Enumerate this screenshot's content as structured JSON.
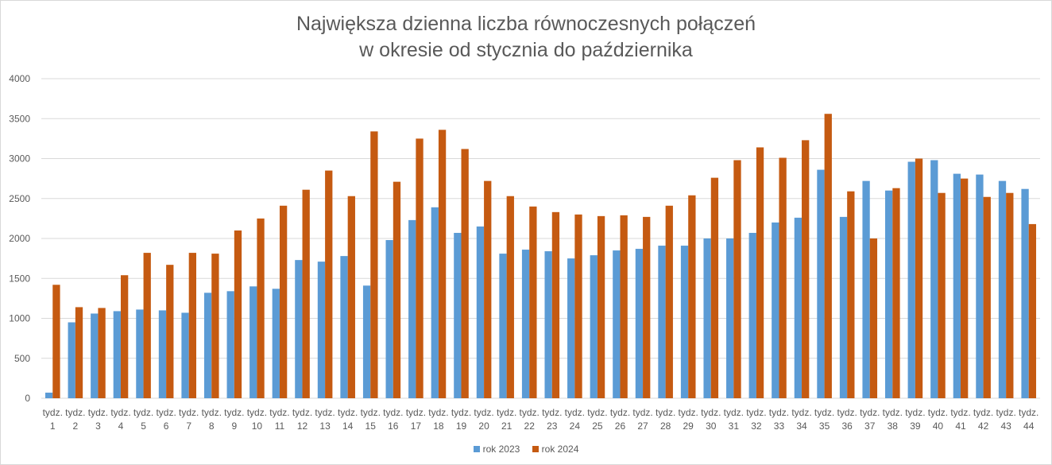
{
  "chart_data": {
    "type": "bar",
    "title_lines": [
      "Największa dzienna liczba równoczesnych połączeń",
      "w okresie od stycznia do października"
    ],
    "xlabel": "",
    "ylabel": "",
    "ylim": [
      0,
      4000
    ],
    "yticks": [
      0,
      500,
      1000,
      1500,
      2000,
      2500,
      3000,
      3500,
      4000
    ],
    "grid": true,
    "legend_position": "bottom",
    "category_prefix": "tydz.",
    "categories": [
      "1",
      "2",
      "3",
      "4",
      "5",
      "6",
      "7",
      "8",
      "9",
      "10",
      "11",
      "12",
      "13",
      "14",
      "15",
      "16",
      "17",
      "18",
      "19",
      "20",
      "21",
      "22",
      "23",
      "24",
      "25",
      "26",
      "27",
      "28",
      "29",
      "30",
      "31",
      "32",
      "33",
      "34",
      "35",
      "36",
      "37",
      "38",
      "39",
      "40",
      "41",
      "42",
      "43",
      "44"
    ],
    "series": [
      {
        "name": "rok 2023",
        "color": "#5b9bd5",
        "values": [
          70,
          950,
          1060,
          1090,
          1110,
          1100,
          1070,
          1320,
          1340,
          1400,
          1370,
          1730,
          1710,
          1780,
          1410,
          1980,
          2230,
          2390,
          2070,
          2150,
          1810,
          1860,
          1840,
          1750,
          1790,
          1850,
          1870,
          1910,
          1910,
          2000,
          2000,
          2070,
          2200,
          2260,
          2860,
          2270,
          2720,
          2600,
          2960,
          2980,
          2810,
          2800,
          2720,
          2620
        ]
      },
      {
        "name": "rok 2024",
        "color": "#c55a11",
        "values": [
          1420,
          1140,
          1130,
          1540,
          1820,
          1670,
          1820,
          1810,
          2100,
          2250,
          2410,
          2610,
          2850,
          2530,
          3340,
          2710,
          3250,
          3360,
          3120,
          2720,
          2530,
          2400,
          2330,
          2300,
          2280,
          2290,
          2270,
          2410,
          2540,
          2760,
          2980,
          3140,
          3010,
          3230,
          3560,
          2590,
          2000,
          2630,
          3000,
          2570,
          2750,
          2520,
          2570,
          2180
        ]
      }
    ]
  }
}
